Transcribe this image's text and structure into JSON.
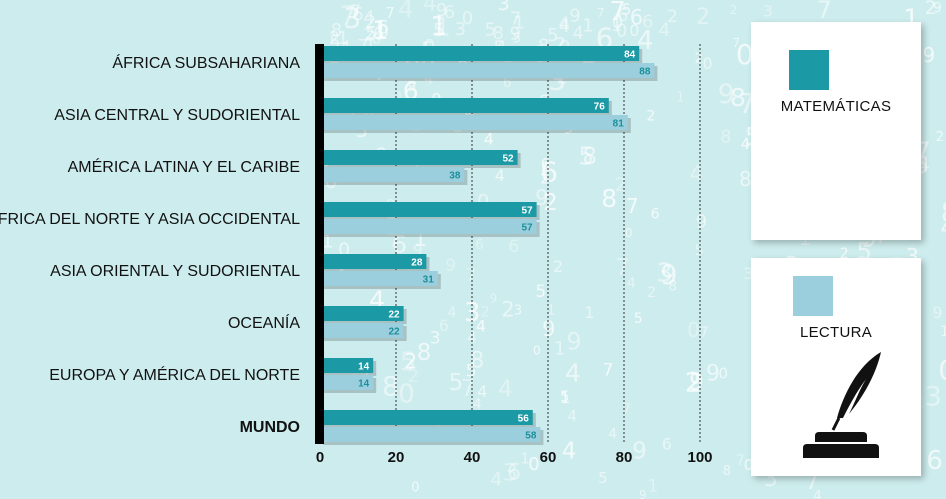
{
  "legend": {
    "math_label": "MATEMÁTICAS",
    "reading_label": "LECTURA"
  },
  "colors": {
    "background": "#cdeced",
    "math": "#1b9aa6",
    "reading": "#9ccfde",
    "axis": "#000000"
  },
  "chart_data": {
    "type": "bar",
    "orientation": "horizontal",
    "categories": [
      "ÁFRICA SUBSAHARIANA",
      "ASIA CENTRAL Y SUDORIENTAL",
      "AMÉRICA LATINA Y EL CARIBE",
      "ÁFRICA DEL NORTE Y ASIA OCCIDENTAL",
      "ASIA ORIENTAL Y SUDORIENTAL",
      "OCEANÍA",
      "EUROPA Y AMÉRICA DEL NORTE",
      "MUNDO"
    ],
    "emphasized_category": "MUNDO",
    "series": [
      {
        "name": "MATEMÁTICAS",
        "values": [
          84,
          76,
          52,
          57,
          28,
          22,
          14,
          56
        ]
      },
      {
        "name": "LECTURA",
        "values": [
          88,
          81,
          38,
          57,
          31,
          22,
          14,
          58
        ]
      }
    ],
    "xticks": [
      0,
      20,
      40,
      60,
      80,
      100
    ],
    "xlim": [
      0,
      100
    ],
    "grid": "vertical dashed",
    "legend_position": "right"
  }
}
